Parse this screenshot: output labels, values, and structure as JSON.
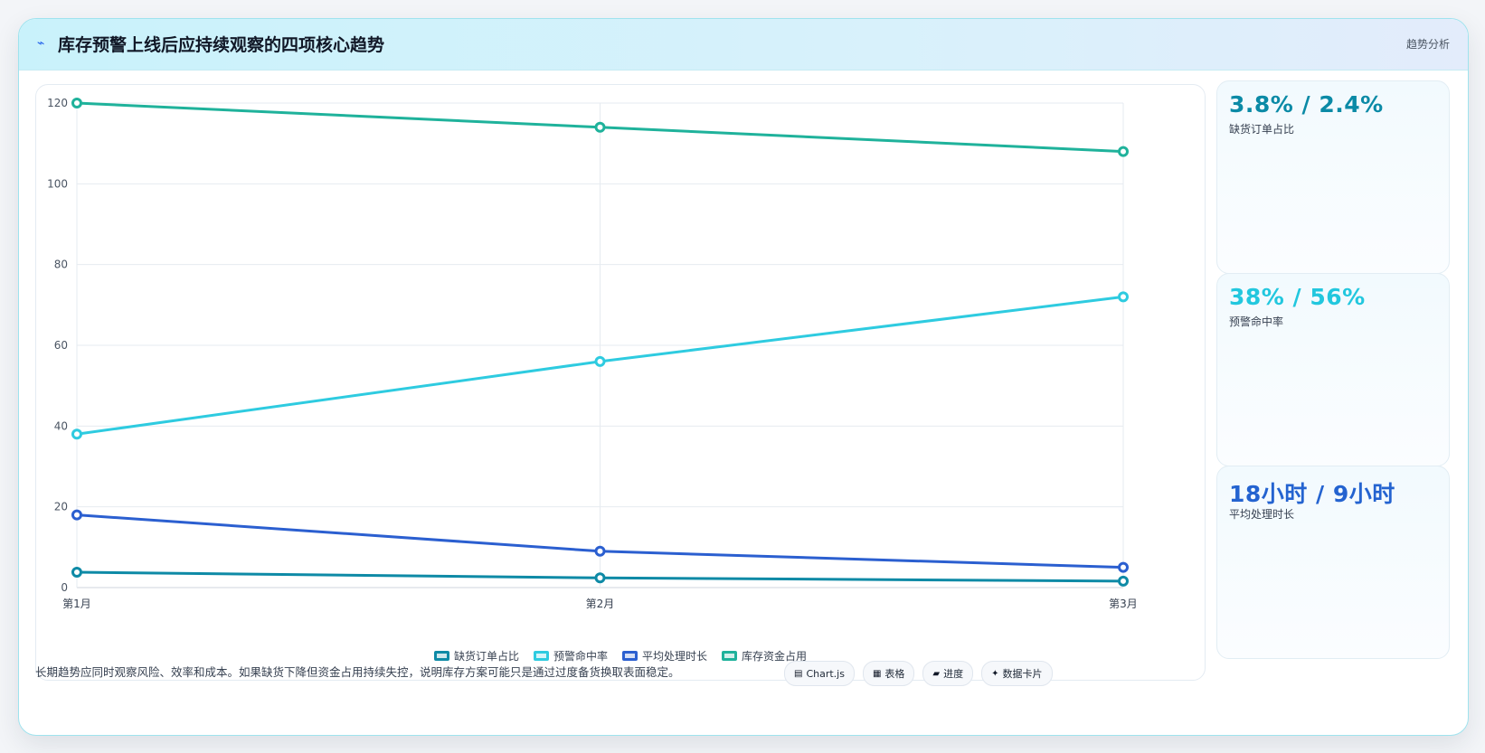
{
  "header": {
    "title": "库存预警上线后应持续观察的四项核心趋势",
    "badge": "趋势分析",
    "icon": "trend-icon"
  },
  "chart_data": {
    "type": "line",
    "x": [
      "第1月",
      "第2月",
      "第3月"
    ],
    "series": [
      {
        "name": "缺货订单占比",
        "values": [
          3.8,
          2.4,
          1.6
        ],
        "color": "#0e8aa6"
      },
      {
        "name": "预警命中率",
        "values": [
          38,
          56,
          72
        ],
        "color": "#2ecbe0"
      },
      {
        "name": "平均处理时长",
        "values": [
          18,
          9,
          5
        ],
        "color": "#2b5fd0"
      },
      {
        "name": "库存资金占用",
        "values": [
          120,
          114,
          108
        ],
        "color": "#1fb29b"
      }
    ],
    "ylim": [
      0,
      120
    ],
    "yticks": [
      0,
      20,
      40,
      60,
      80,
      100,
      120
    ],
    "grid": true,
    "legend_position": "bottom"
  },
  "cards": [
    {
      "value": "3.8% / 2.4%",
      "label": "缺货订单占比",
      "color": "#0b8aa6"
    },
    {
      "value": "38% / 56%",
      "label": "预警命中率",
      "color": "#22c7de"
    },
    {
      "value": "18小时 / 9小时",
      "label": "平均处理时长",
      "color": "#2463d0"
    }
  ],
  "footnote": "长期趋势应同时观察风险、效率和成本。如果缺货下降但资金占用持续失控，说明库存方案可能只是通过过度备货换取表面稳定。",
  "tags": [
    {
      "icon": "chart-icon",
      "glyph": "▤",
      "label": "Chart.js"
    },
    {
      "icon": "table-icon",
      "glyph": "▦",
      "label": "表格"
    },
    {
      "icon": "progress-icon",
      "glyph": "▰",
      "label": "进度"
    },
    {
      "icon": "card-icon",
      "glyph": "✦",
      "label": "数据卡片"
    }
  ]
}
